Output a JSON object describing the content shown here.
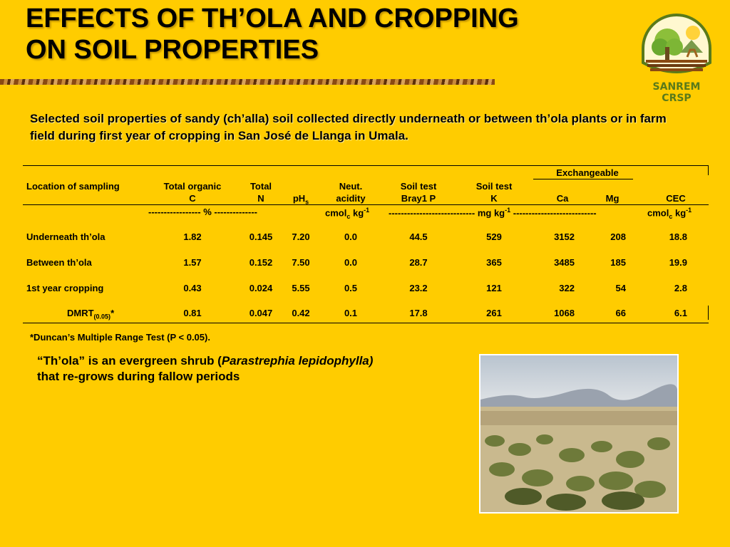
{
  "title": {
    "line1": "EFFECTS OF TH’OLA  AND CROPPING",
    "line2": "ON SOIL PROPERTIES"
  },
  "logo": {
    "text": "SANREM CRSP"
  },
  "caption": "Selected soil properties of sandy (ch’alla) soil collected directly underneath or between th’ola plants or in farm field during first year of cropping in San José de Llanga in Umala.",
  "table": {
    "group_header": "Exchangeable",
    "headers": {
      "location": "Location of sampling",
      "toc_1": "Total organic",
      "toc_2": "C",
      "tn_1": "Total",
      "tn_2": "N",
      "ph": "pH",
      "ph_sub": "s",
      "acid_1": "Neut.",
      "acid_2": "acidity",
      "p_1": "Soil test",
      "p_2": "Bray1 P",
      "k_1": "Soil test",
      "k_2": "K",
      "ca": "Ca",
      "mg": "Mg",
      "cec": "CEC"
    },
    "units": {
      "percent": "----------------- % --------------",
      "cmol1_base": "cmol",
      "cmol1_sub": "c",
      "cmol1_rest": " kg",
      "cmol1_sup": "-1",
      "mgkg_base": "---------------------------- mg kg",
      "mgkg_sup": "-1",
      "mgkg_tail": " ---------------------------",
      "cmol2_base": "cmol",
      "cmol2_sub": "c",
      "cmol2_rest": " kg",
      "cmol2_sup": "-1"
    },
    "rows": [
      {
        "location": "Underneath th’ola",
        "toc": "1.82",
        "tn": "0.145",
        "ph": "7.20",
        "acid": "0.0",
        "p": "44.5",
        "k": "529",
        "ca": "3152",
        "mg": "208",
        "cec": "18.8"
      },
      {
        "location": "Between th’ola",
        "toc": "1.57",
        "tn": "0.152",
        "ph": "7.50",
        "acid": "0.0",
        "p": "28.7",
        "k": "365",
        "ca": "3485",
        "mg": "185",
        "cec": "19.9"
      },
      {
        "location": "1st year cropping",
        "toc": "0.43",
        "tn": "0.024",
        "ph": "5.55",
        "acid": "0.5",
        "p": "23.2",
        "k": "121",
        "ca": "322",
        "mg": "54",
        "cec": "2.8"
      },
      {
        "location_base": "DMRT",
        "location_sub": "(0.05)",
        "location_tail": "*",
        "toc": "0.81",
        "tn": "0.047",
        "ph": "0.42",
        "acid": "0.1",
        "p": "17.8",
        "k": "261",
        "ca": "1068",
        "mg": "66",
        "cec": "6.1"
      }
    ]
  },
  "footnote": "*Duncan’s Multiple Range Test (P < 0.05).",
  "shrub_note": {
    "pre": "“Th’ola” is an evergreen shrub (",
    "species": "Parastrephia lepidophylla)",
    "line2": "that re-grows during fallow periods"
  },
  "colors": {
    "background": "#ffcc00",
    "logo_green": "#5a7a1a"
  }
}
